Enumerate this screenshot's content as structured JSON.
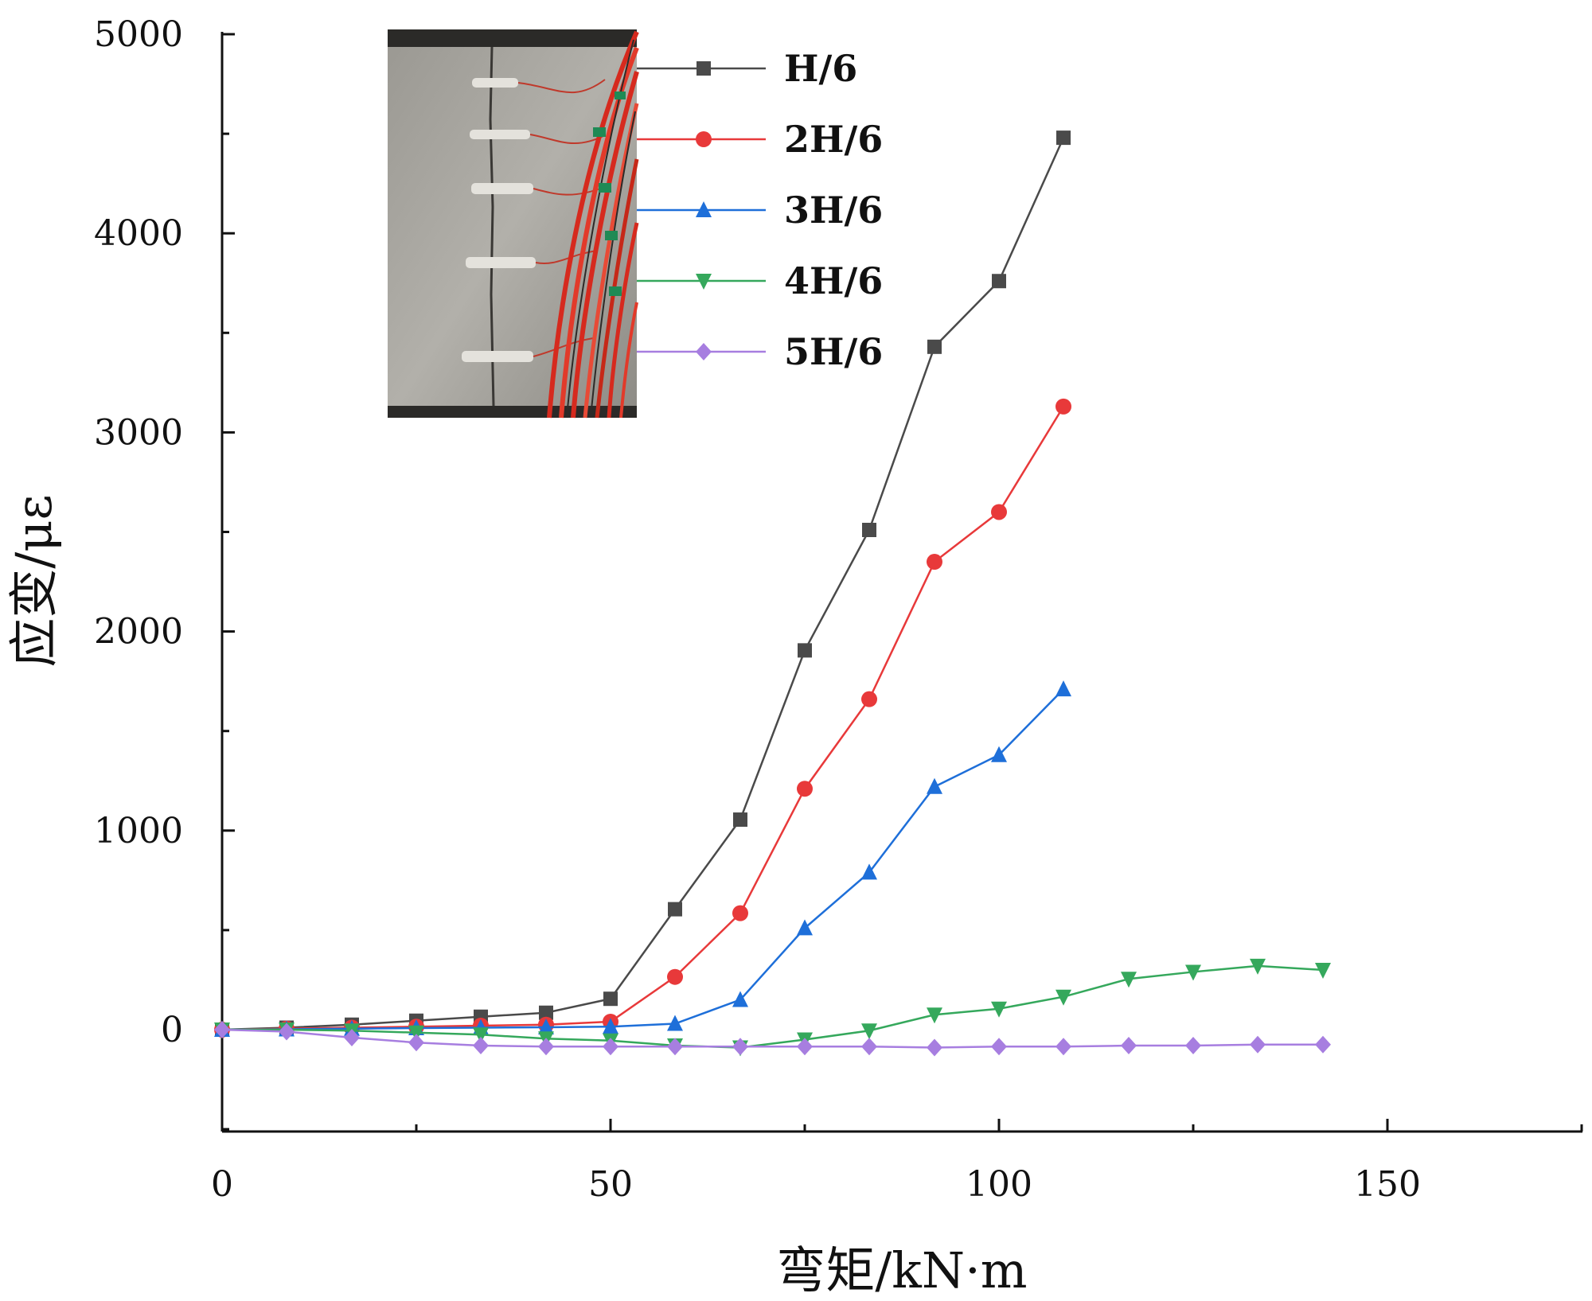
{
  "chart_data": {
    "type": "line",
    "xlabel": "弯矩/kN·m",
    "ylabel": "应变/με",
    "xlim": [
      0,
      175
    ],
    "ylim": [
      -500,
      5000
    ],
    "xticks": [
      0,
      50,
      100,
      150
    ],
    "yticks": [
      0,
      1000,
      2000,
      3000,
      4000,
      5000
    ],
    "grid": false,
    "legend_position": "top-center",
    "inset": "photo of a concrete specimen with strain gauges and red wiring",
    "series": [
      {
        "name": "H/6",
        "color": "#4a4a4a",
        "marker": "square",
        "x": [
          0,
          8.3,
          16.7,
          25,
          33.3,
          41.7,
          50,
          58.3,
          66.7,
          75,
          83.3,
          91.7,
          100,
          108.3
        ],
        "y": [
          0,
          10,
          25,
          45,
          65,
          85,
          155,
          605,
          1055,
          1905,
          2510,
          3430,
          3760,
          4480
        ]
      },
      {
        "name": "2H/6",
        "color": "#e8393a",
        "marker": "circle",
        "x": [
          0,
          8.3,
          16.7,
          25,
          33.3,
          41.7,
          50,
          58.3,
          66.7,
          75,
          83.3,
          91.7,
          100,
          108.3
        ],
        "y": [
          0,
          5,
          10,
          15,
          20,
          25,
          40,
          265,
          585,
          1210,
          1660,
          2350,
          2600,
          3130
        ]
      },
      {
        "name": "3H/6",
        "color": "#1e6fd9",
        "marker": "triangle-up",
        "x": [
          0,
          8.3,
          16.7,
          25,
          33.3,
          41.7,
          50,
          58.3,
          66.7,
          75,
          83.3,
          91.7,
          100,
          108.3
        ],
        "y": [
          0,
          2,
          5,
          8,
          10,
          12,
          15,
          30,
          150,
          510,
          790,
          1220,
          1380,
          1710
        ]
      },
      {
        "name": "4H/6",
        "color": "#35a85c",
        "marker": "triangle-down",
        "x": [
          0,
          8.3,
          16.7,
          25,
          33.3,
          41.7,
          50,
          58.3,
          66.7,
          75,
          83.3,
          91.7,
          100,
          108.3,
          116.7,
          125,
          133.3,
          141.7
        ],
        "y": [
          0,
          0,
          -5,
          -15,
          -25,
          -45,
          -55,
          -80,
          -90,
          -50,
          -5,
          75,
          105,
          165,
          255,
          290,
          320,
          300
        ]
      },
      {
        "name": "5H/6",
        "color": "#a77ee0",
        "marker": "diamond",
        "x": [
          0,
          8.3,
          16.7,
          25,
          33.3,
          41.7,
          50,
          58.3,
          66.7,
          75,
          83.3,
          91.7,
          100,
          108.3,
          116.7,
          125,
          133.3,
          141.7
        ],
        "y": [
          0,
          -10,
          -40,
          -65,
          -80,
          -85,
          -85,
          -85,
          -85,
          -85,
          -85,
          -90,
          -85,
          -85,
          -80,
          -80,
          -75,
          -75
        ]
      }
    ]
  }
}
